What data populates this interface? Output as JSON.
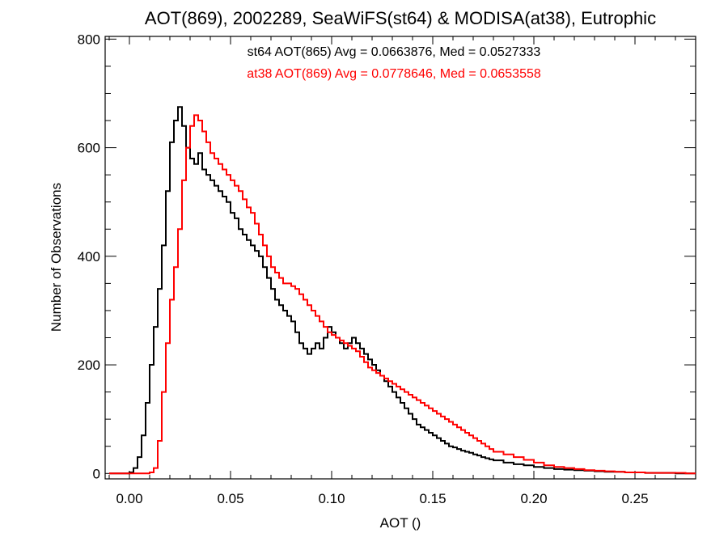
{
  "chart_data": {
    "type": "line",
    "title": "AOT(869), 2002289, SeaWiFS(st64) & MODISA(at38), Eutrophic",
    "xlabel": "AOT ()",
    "ylabel": "Number of Observations",
    "xlim": [
      -0.012,
      0.28
    ],
    "ylim": [
      -10,
      805
    ],
    "xticks": [
      0.0,
      0.05,
      0.1,
      0.15,
      0.2,
      0.25
    ],
    "xtick_labels": [
      "0.00",
      "0.05",
      "0.10",
      "0.15",
      "0.20",
      "0.25"
    ],
    "yticks": [
      0,
      200,
      400,
      600,
      800
    ],
    "ytick_labels": [
      "0",
      "200",
      "400",
      "600",
      "800"
    ],
    "annotations": [
      {
        "text": "st64 AOT(865) Avg = 0.0663876, Med = 0.0527333",
        "color": "#000000"
      },
      {
        "text": "at38 AOT(869) Avg = 0.0778646, Med = 0.0653558",
        "color": "#ff0000"
      }
    ],
    "grid": false,
    "style": "step",
    "series": [
      {
        "name": "st64",
        "color": "#000000",
        "x": [
          -0.01,
          0.0,
          0.002,
          0.004,
          0.006,
          0.008,
          0.01,
          0.012,
          0.014,
          0.016,
          0.018,
          0.02,
          0.022,
          0.024,
          0.026,
          0.028,
          0.03,
          0.032,
          0.034,
          0.036,
          0.038,
          0.04,
          0.042,
          0.044,
          0.046,
          0.048,
          0.05,
          0.052,
          0.054,
          0.056,
          0.058,
          0.06,
          0.062,
          0.064,
          0.066,
          0.068,
          0.07,
          0.072,
          0.074,
          0.076,
          0.078,
          0.08,
          0.082,
          0.084,
          0.086,
          0.088,
          0.09,
          0.092,
          0.094,
          0.096,
          0.098,
          0.1,
          0.102,
          0.104,
          0.106,
          0.108,
          0.11,
          0.112,
          0.114,
          0.116,
          0.118,
          0.12,
          0.122,
          0.124,
          0.126,
          0.128,
          0.13,
          0.132,
          0.134,
          0.136,
          0.138,
          0.14,
          0.142,
          0.144,
          0.146,
          0.148,
          0.15,
          0.152,
          0.154,
          0.156,
          0.158,
          0.16,
          0.162,
          0.164,
          0.166,
          0.168,
          0.17,
          0.172,
          0.174,
          0.176,
          0.178,
          0.18,
          0.185,
          0.19,
          0.195,
          0.2,
          0.205,
          0.21,
          0.215,
          0.22,
          0.225,
          0.23,
          0.235,
          0.24,
          0.245,
          0.25,
          0.255,
          0.26,
          0.265,
          0.27,
          0.275,
          0.28
        ],
        "y": [
          0,
          2,
          10,
          30,
          70,
          130,
          200,
          270,
          340,
          420,
          520,
          610,
          650,
          675,
          640,
          600,
          580,
          570,
          590,
          560,
          550,
          540,
          530,
          520,
          510,
          500,
          480,
          470,
          450,
          440,
          430,
          420,
          410,
          400,
          380,
          360,
          340,
          320,
          310,
          300,
          290,
          280,
          260,
          240,
          230,
          220,
          230,
          240,
          230,
          250,
          270,
          260,
          250,
          240,
          230,
          240,
          250,
          240,
          230,
          220,
          210,
          200,
          190,
          180,
          170,
          160,
          150,
          140,
          130,
          120,
          110,
          100,
          90,
          85,
          80,
          75,
          70,
          65,
          60,
          55,
          50,
          48,
          45,
          42,
          40,
          38,
          35,
          33,
          30,
          28,
          26,
          24,
          20,
          17,
          15,
          12,
          10,
          8,
          7,
          6,
          5,
          4,
          3,
          3,
          2,
          2,
          1,
          1,
          1,
          0,
          0,
          0
        ]
      },
      {
        "name": "at38",
        "color": "#ff0000",
        "x": [
          -0.01,
          0.008,
          0.01,
          0.012,
          0.014,
          0.016,
          0.018,
          0.02,
          0.022,
          0.024,
          0.026,
          0.028,
          0.03,
          0.032,
          0.034,
          0.036,
          0.038,
          0.04,
          0.042,
          0.044,
          0.046,
          0.048,
          0.05,
          0.052,
          0.054,
          0.056,
          0.058,
          0.06,
          0.062,
          0.064,
          0.066,
          0.068,
          0.07,
          0.072,
          0.074,
          0.076,
          0.078,
          0.08,
          0.082,
          0.084,
          0.086,
          0.088,
          0.09,
          0.092,
          0.094,
          0.096,
          0.098,
          0.1,
          0.102,
          0.104,
          0.106,
          0.108,
          0.11,
          0.112,
          0.114,
          0.116,
          0.118,
          0.12,
          0.122,
          0.124,
          0.126,
          0.128,
          0.13,
          0.132,
          0.134,
          0.136,
          0.138,
          0.14,
          0.142,
          0.144,
          0.146,
          0.148,
          0.15,
          0.152,
          0.154,
          0.156,
          0.158,
          0.16,
          0.162,
          0.164,
          0.166,
          0.168,
          0.17,
          0.172,
          0.174,
          0.176,
          0.178,
          0.18,
          0.185,
          0.19,
          0.195,
          0.2,
          0.205,
          0.21,
          0.215,
          0.22,
          0.225,
          0.23,
          0.235,
          0.24,
          0.245,
          0.25,
          0.255,
          0.26,
          0.265,
          0.27,
          0.275,
          0.28
        ],
        "y": [
          0,
          0,
          2,
          10,
          60,
          150,
          240,
          320,
          380,
          450,
          540,
          600,
          640,
          660,
          650,
          630,
          610,
          590,
          580,
          570,
          560,
          550,
          540,
          530,
          520,
          505,
          490,
          480,
          460,
          440,
          420,
          400,
          380,
          370,
          360,
          350,
          350,
          345,
          340,
          330,
          320,
          310,
          300,
          290,
          280,
          270,
          260,
          255,
          250,
          245,
          240,
          235,
          230,
          225,
          215,
          205,
          195,
          190,
          185,
          180,
          175,
          170,
          165,
          160,
          155,
          150,
          145,
          140,
          135,
          130,
          125,
          120,
          115,
          110,
          105,
          100,
          95,
          90,
          85,
          80,
          75,
          70,
          65,
          60,
          55,
          50,
          45,
          40,
          35,
          30,
          25,
          20,
          15,
          12,
          10,
          8,
          6,
          5,
          4,
          3,
          2,
          2,
          1,
          1,
          1,
          1,
          0,
          0
        ]
      }
    ]
  }
}
